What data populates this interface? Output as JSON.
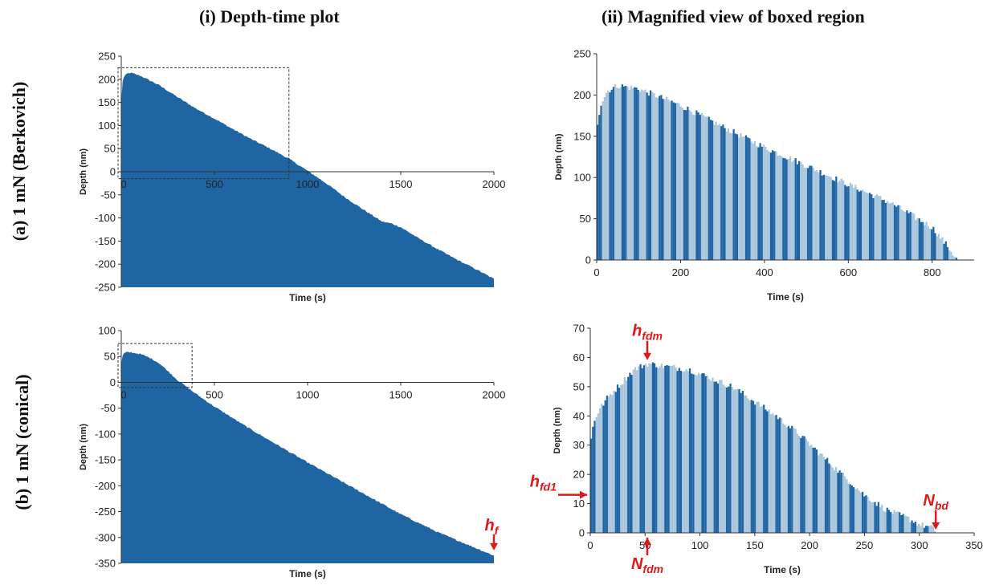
{
  "column_titles": [
    "(i) Depth-time plot",
    "(ii) Magnified view of boxed region"
  ],
  "row_labels": [
    "(a) 1 mN (Berkovich)",
    "(b) 1 mN (conical)"
  ],
  "colors": {
    "fill_dark": "#1f64a3",
    "fill_light": "#a9c6dc",
    "annotation": "#e01818",
    "axis": "#333333"
  },
  "chart_data": [
    {
      "id": "a-i",
      "type": "area",
      "title": "(a) 1 mN (Berkovich) - Depth-time plot",
      "xlabel": "Time (s)",
      "ylabel": "Depth (nm)",
      "xlim": [
        0,
        2000
      ],
      "ylim": [
        -250,
        250
      ],
      "xticks": [
        0,
        500,
        1000,
        1500,
        2000
      ],
      "yticks": [
        250,
        200,
        150,
        100,
        50,
        0,
        -50,
        -100,
        -150,
        -200,
        -250
      ],
      "x": [
        0,
        5,
        15,
        30,
        50,
        100,
        200,
        300,
        400,
        500,
        600,
        700,
        800,
        900,
        1000,
        1100,
        1200,
        1300,
        1350,
        1400,
        1450,
        1500,
        1600,
        1700,
        1800,
        1900,
        2000
      ],
      "y": [
        150,
        195,
        205,
        212,
        214,
        208,
        188,
        162,
        137,
        115,
        92,
        70,
        50,
        28,
        2,
        -25,
        -55,
        -82,
        -95,
        -108,
        -112,
        -120,
        -145,
        -168,
        -190,
        -210,
        -232
      ],
      "boxed_region": {
        "x": [
          0,
          900
        ],
        "y": [
          -15,
          225
        ]
      }
    },
    {
      "id": "a-ii",
      "type": "bar",
      "title": "(a) 1 mN (Berkovich) - Magnified view",
      "xlabel": "Time (s)",
      "ylabel": "Depth (nm)",
      "xlim": [
        0,
        900
      ],
      "ylim": [
        0,
        250
      ],
      "xticks": [
        0,
        200,
        400,
        600,
        800
      ],
      "yticks": [
        250,
        200,
        150,
        100,
        50,
        0
      ],
      "x": [
        0,
        10,
        25,
        50,
        100,
        200,
        300,
        400,
        500,
        600,
        700,
        800,
        840,
        860
      ],
      "y": [
        160,
        190,
        205,
        212,
        208,
        188,
        162,
        137,
        115,
        92,
        70,
        40,
        15,
        0
      ]
    },
    {
      "id": "b-i",
      "type": "area",
      "title": "(b) 1 mN (conical) - Depth-time plot",
      "xlabel": "Time (s)",
      "ylabel": "Depth (nm)",
      "xlim": [
        0,
        2000
      ],
      "ylim": [
        -350,
        100
      ],
      "xticks": [
        0,
        500,
        1000,
        1500,
        2000
      ],
      "yticks": [
        100,
        50,
        0,
        -50,
        -100,
        -150,
        -200,
        -250,
        -300,
        -350
      ],
      "x": [
        0,
        5,
        15,
        30,
        50,
        100,
        150,
        200,
        250,
        300,
        400,
        500,
        700,
        1000,
        1300,
        1500,
        1700,
        1900,
        2000
      ],
      "y": [
        35,
        50,
        56,
        58,
        58,
        55,
        48,
        38,
        22,
        5,
        -22,
        -47,
        -92,
        -155,
        -215,
        -255,
        -290,
        -320,
        -335
      ],
      "boxed_region": {
        "x": [
          0,
          380
        ],
        "y": [
          -10,
          75
        ]
      },
      "annotations": [
        {
          "text": "h",
          "subscript": "f",
          "x": 2000,
          "y": -328
        }
      ]
    },
    {
      "id": "b-ii",
      "type": "bar",
      "title": "(b) 1 mN (conical) - Magnified view",
      "xlabel": "Time (s)",
      "ylabel": "Depth (nm)",
      "xlim": [
        0,
        350
      ],
      "ylim": [
        0,
        70
      ],
      "xticks": [
        0,
        50,
        100,
        150,
        200,
        250,
        300,
        350
      ],
      "yticks": [
        70,
        60,
        50,
        40,
        30,
        20,
        10,
        0
      ],
      "x": [
        0,
        3,
        8,
        15,
        25,
        40,
        52,
        70,
        90,
        110,
        130,
        150,
        170,
        190,
        210,
        230,
        250,
        270,
        290,
        300,
        310,
        315
      ],
      "y": [
        30,
        38,
        42,
        46,
        50,
        56,
        58,
        57,
        56,
        53,
        50,
        45,
        40,
        34,
        27,
        20,
        13,
        8,
        5,
        3,
        2,
        1
      ],
      "annotations": [
        {
          "text": "h",
          "subscript": "fdm",
          "x": 52,
          "y": 58,
          "arrow": "down",
          "label_position": "above"
        },
        {
          "text": "h",
          "subscript": "fd1",
          "x": 0,
          "y": 13,
          "arrow": "right",
          "label_position": "left"
        },
        {
          "text": "N",
          "subscript": "fdm",
          "x": 52,
          "y": 0,
          "arrow": "up",
          "label_position": "below"
        },
        {
          "text": "N",
          "subscript": "bd",
          "x": 315,
          "y": 0,
          "arrow": "down",
          "label_position": "above"
        }
      ]
    }
  ]
}
